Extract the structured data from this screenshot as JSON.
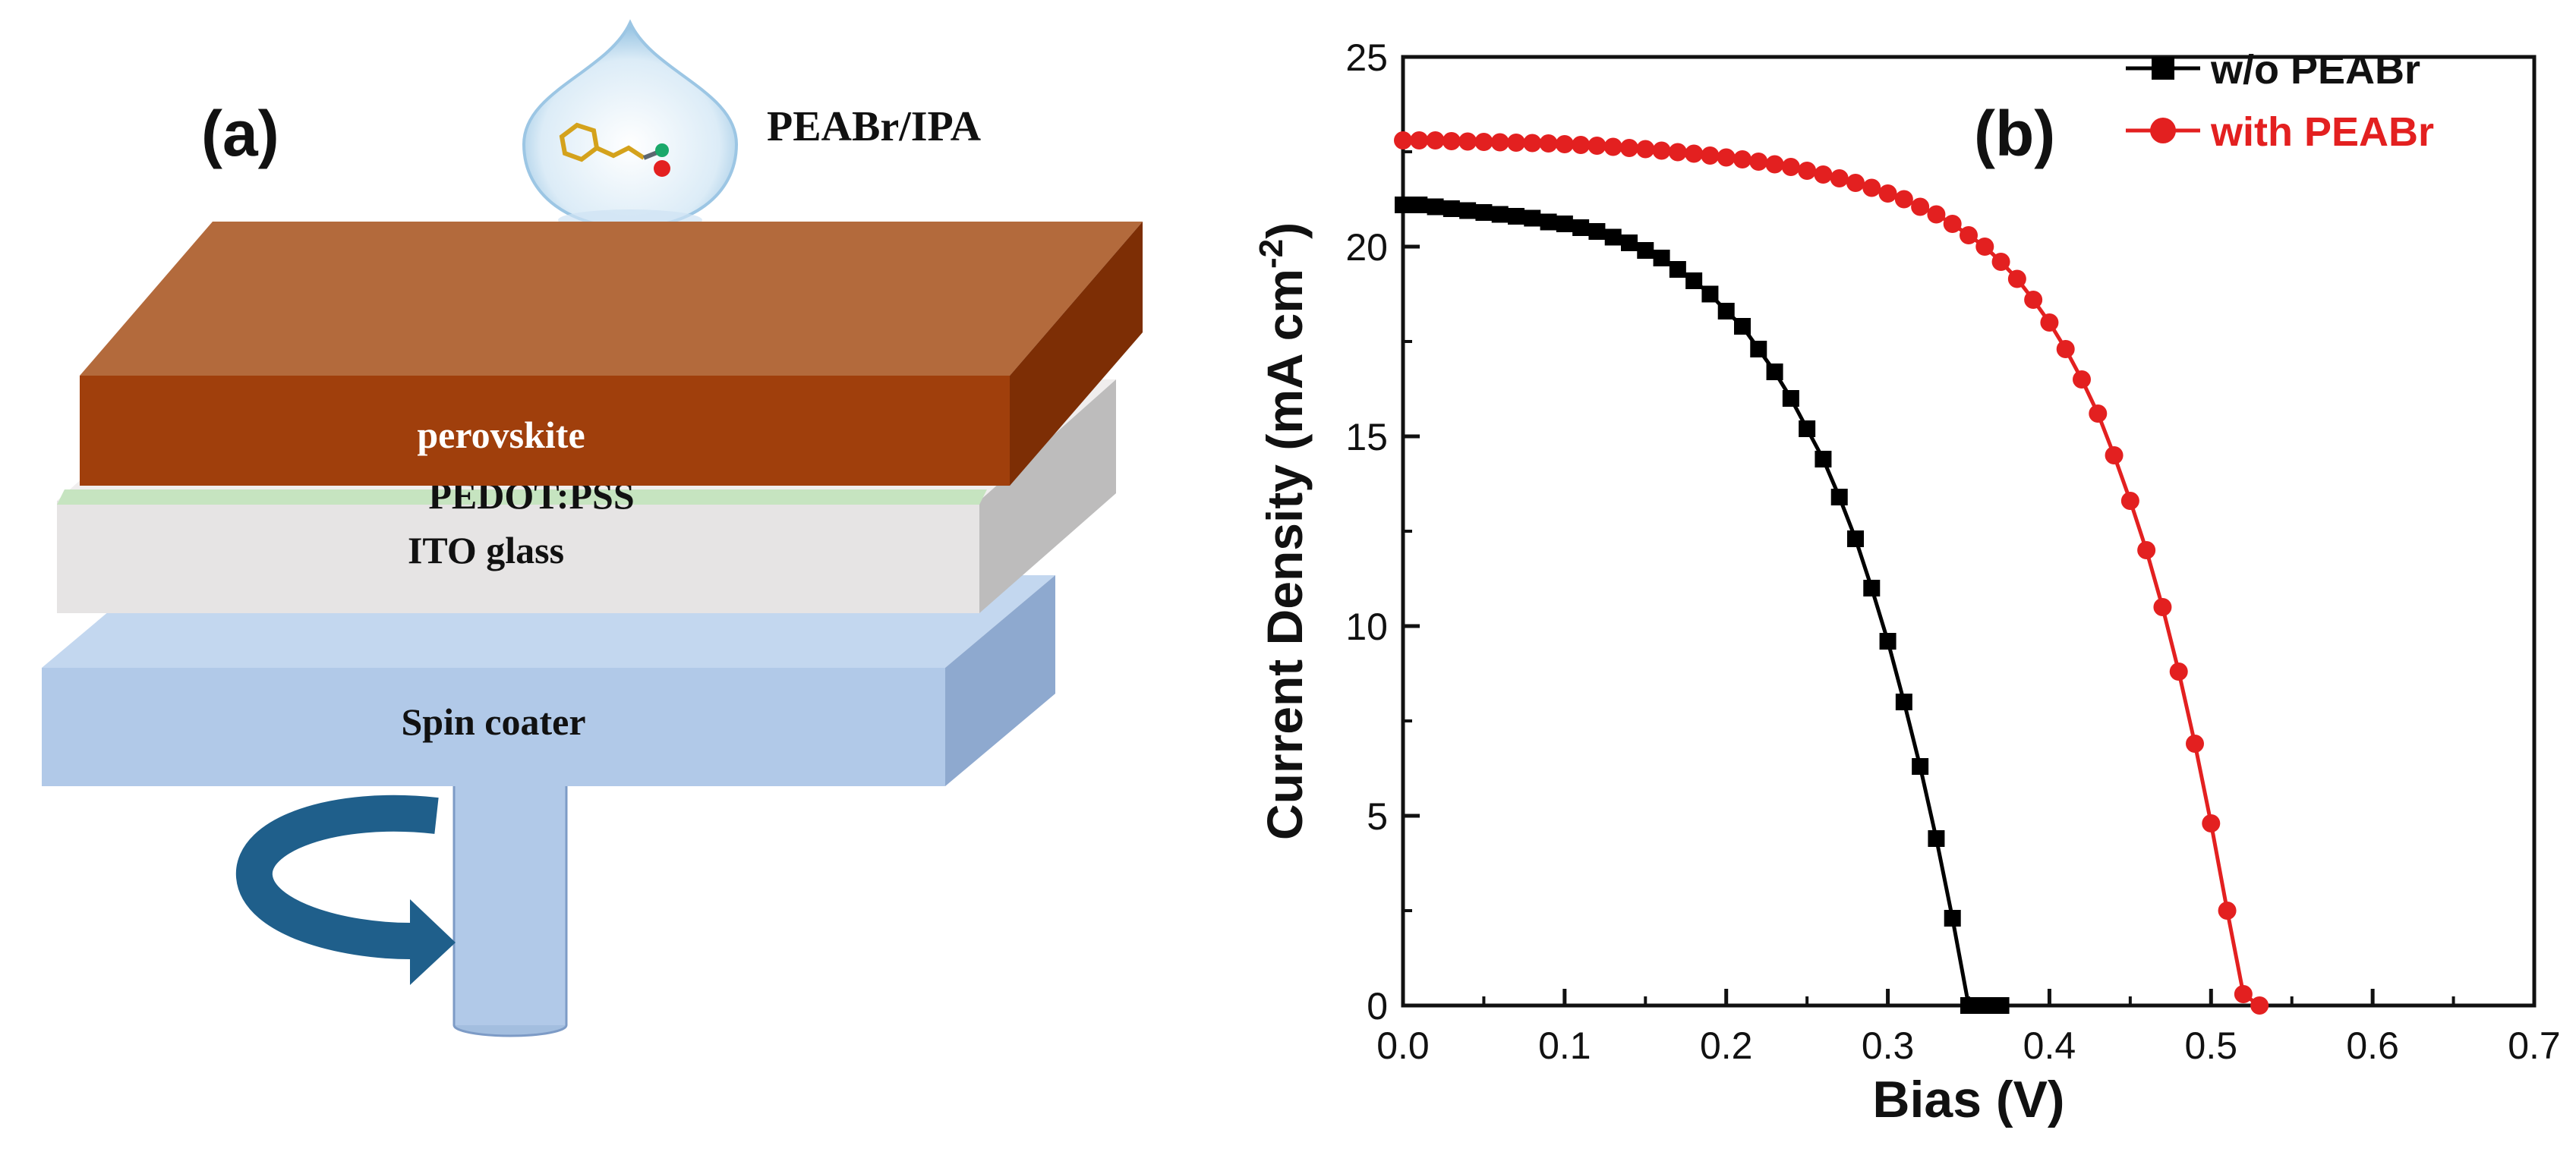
{
  "panel_a": {
    "label": "(a)",
    "solution_label": "PEABr/IPA",
    "layers": [
      {
        "name": "perovskite",
        "color": "#b36a3c"
      },
      {
        "name": "PEDOT:PSS",
        "color": "#c6e4c0"
      },
      {
        "name": "ITO glass",
        "color": "#e6e4e4"
      },
      {
        "name": "Spin coater",
        "color": "#b1c9e8"
      }
    ],
    "icons": [
      "droplet-icon",
      "molecule-icon",
      "rotation-arrow-icon"
    ]
  },
  "panel_b": {
    "label": "(b)"
  },
  "chart_data": {
    "type": "line",
    "xlabel": "Bias (V)",
    "ylabel": "Current Density (mA cm",
    "ylabel_sup": "-2",
    "ylabel_close": ")",
    "xlim": [
      0.0,
      0.7
    ],
    "ylim": [
      0,
      25
    ],
    "xticks": [
      0.0,
      0.1,
      0.2,
      0.3,
      0.4,
      0.5,
      0.6,
      0.7
    ],
    "xtick_labels": [
      "0.0",
      "0.1",
      "0.2",
      "0.3",
      "0.4",
      "0.5",
      "0.6",
      "0.7"
    ],
    "yticks": [
      0,
      5,
      10,
      15,
      20,
      25
    ],
    "ytick_labels": [
      "0",
      "5",
      "10",
      "15",
      "20",
      "25"
    ],
    "grid": false,
    "legend_position": "top-right",
    "series": [
      {
        "name": "w/o PEABr",
        "color": "#000000",
        "marker": "square",
        "x": [
          0.0,
          0.01,
          0.02,
          0.03,
          0.04,
          0.05,
          0.06,
          0.07,
          0.08,
          0.09,
          0.1,
          0.11,
          0.12,
          0.13,
          0.14,
          0.15,
          0.16,
          0.17,
          0.18,
          0.19,
          0.2,
          0.21,
          0.22,
          0.23,
          0.24,
          0.25,
          0.26,
          0.27,
          0.28,
          0.29,
          0.3,
          0.31,
          0.32,
          0.33,
          0.34,
          0.35,
          0.36,
          0.37
        ],
        "y": [
          21.1,
          21.1,
          21.05,
          21.0,
          20.95,
          20.9,
          20.85,
          20.8,
          20.75,
          20.65,
          20.6,
          20.5,
          20.4,
          20.25,
          20.1,
          19.9,
          19.7,
          19.4,
          19.1,
          18.75,
          18.3,
          17.9,
          17.3,
          16.7,
          16.0,
          15.2,
          14.4,
          13.4,
          12.3,
          11.0,
          9.6,
          8.0,
          6.3,
          4.4,
          2.3,
          0.0,
          0.0,
          0.0
        ]
      },
      {
        "name": "with PEABr",
        "color": "#e32020",
        "marker": "circle",
        "x": [
          0.0,
          0.01,
          0.02,
          0.03,
          0.04,
          0.05,
          0.06,
          0.07,
          0.08,
          0.09,
          0.1,
          0.11,
          0.12,
          0.13,
          0.14,
          0.15,
          0.16,
          0.17,
          0.18,
          0.19,
          0.2,
          0.21,
          0.22,
          0.23,
          0.24,
          0.25,
          0.26,
          0.27,
          0.28,
          0.29,
          0.3,
          0.31,
          0.32,
          0.33,
          0.34,
          0.35,
          0.36,
          0.37,
          0.38,
          0.39,
          0.4,
          0.41,
          0.42,
          0.43,
          0.44,
          0.45,
          0.46,
          0.47,
          0.48,
          0.49,
          0.5,
          0.51,
          0.52,
          0.53
        ],
        "y": [
          22.8,
          22.8,
          22.8,
          22.78,
          22.77,
          22.76,
          22.75,
          22.74,
          22.73,
          22.72,
          22.7,
          22.68,
          22.66,
          22.63,
          22.6,
          22.57,
          22.53,
          22.49,
          22.45,
          22.4,
          22.35,
          22.3,
          22.24,
          22.17,
          22.1,
          22.0,
          21.9,
          21.8,
          21.68,
          21.55,
          21.4,
          21.25,
          21.05,
          20.85,
          20.6,
          20.3,
          20.0,
          19.6,
          19.15,
          18.6,
          18.0,
          17.3,
          16.5,
          15.6,
          14.5,
          13.3,
          12.0,
          10.5,
          8.8,
          6.9,
          4.8,
          2.5,
          0.3,
          0.0
        ]
      }
    ]
  }
}
